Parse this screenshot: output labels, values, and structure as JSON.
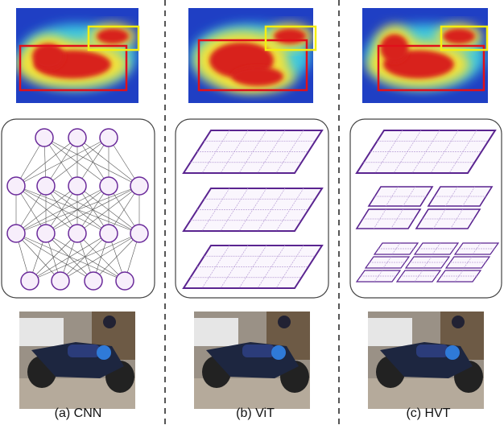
{
  "captions": [
    "(a) CNN",
    "(b) ViT",
    "(c) HVT"
  ]
}
